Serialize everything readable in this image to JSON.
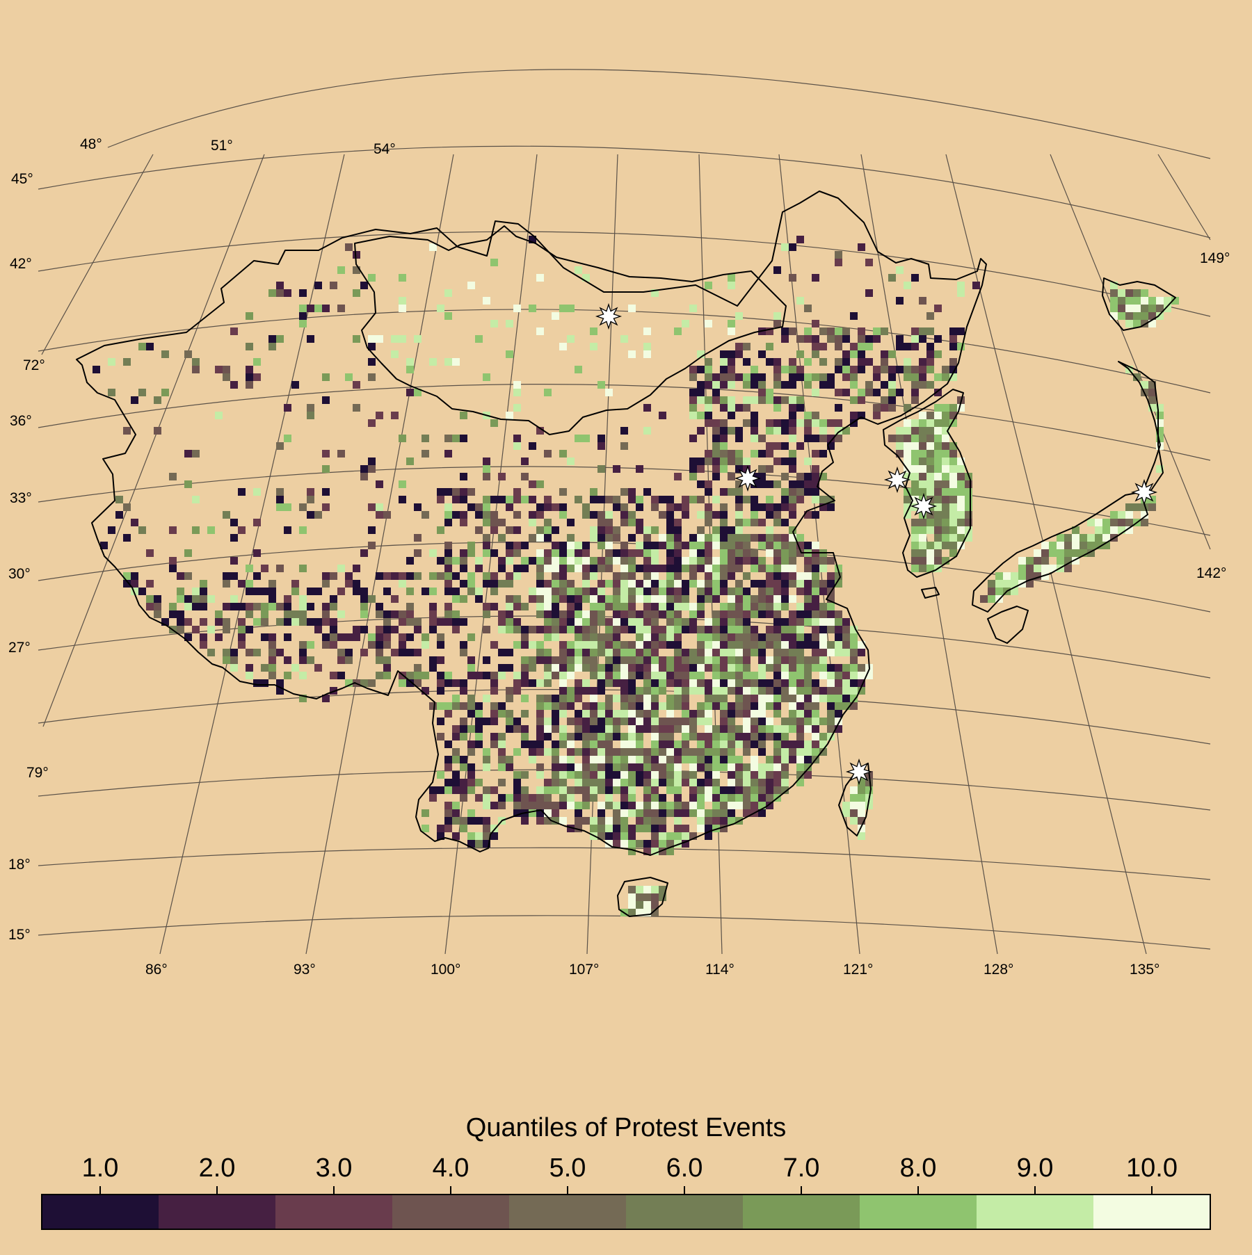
{
  "map": {
    "lat_labels_left": [
      "48°",
      "51°",
      "54°",
      "45°",
      "42°",
      "72°",
      "36°",
      "33°",
      "30°",
      "27°",
      "79°",
      "18°",
      "15°"
    ],
    "lon_labels_bottom": [
      "86°",
      "93°",
      "100°",
      "107°",
      "114°",
      "121°",
      "128°",
      "135°"
    ],
    "lon_labels_right": [
      "149°",
      "142°"
    ],
    "cities_marked": 6,
    "quantile_colors": [
      "#1E0F35",
      "#462042",
      "#693C4D",
      "#6E5450",
      "#746A55",
      "#737E55",
      "#7A9A58",
      "#8FC46F",
      "#C4ECA6",
      "#F3FCE1"
    ]
  },
  "legend": {
    "title": "Quantiles of Protest Events",
    "labels": [
      "1.0",
      "2.0",
      "3.0",
      "4.0",
      "5.0",
      "6.0",
      "7.0",
      "8.0",
      "9.0",
      "10.0"
    ]
  }
}
